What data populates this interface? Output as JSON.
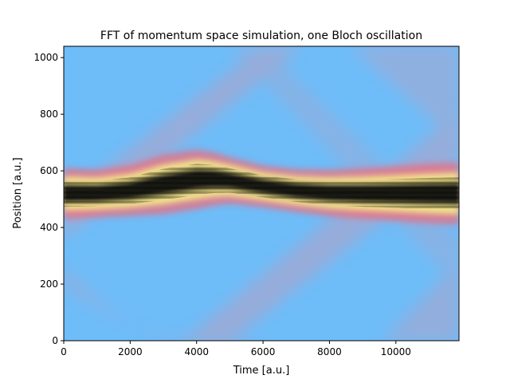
{
  "chart_data": {
    "type": "heatmap",
    "title": "FFT of momentum space simulation, one Bloch oscillation",
    "xlabel": "Time [a.u.]",
    "ylabel": "Position [a.u.]",
    "xlim": [
      0,
      11900
    ],
    "ylim": [
      0,
      1040
    ],
    "xticks": [
      0,
      2000,
      4000,
      6000,
      8000,
      10000
    ],
    "yticks": [
      0,
      200,
      400,
      600,
      800,
      1000
    ],
    "grid": false,
    "legend": "none",
    "colors": {
      "background": "#6ebcf8",
      "band_edge": "#f06a7a",
      "band_mid": "#f8f08a",
      "band_core": "#101008",
      "faint_pink": "#c89ab6"
    },
    "band_center": {
      "x": [
        0,
        1000,
        2000,
        3000,
        4000,
        4500,
        5000,
        6000,
        7000,
        8000,
        9000,
        10000,
        11000,
        11900
      ],
      "y": [
        520,
        520,
        530,
        552,
        570,
        571,
        566,
        545,
        530,
        522,
        520,
        520,
        520,
        520
      ]
    },
    "band_halfwidth": {
      "x": [
        0,
        1000,
        2000,
        3000,
        4000,
        4500,
        5000,
        6000,
        7000,
        8000,
        9000,
        10000,
        11000,
        11900
      ],
      "y": [
        85,
        80,
        85,
        100,
        100,
        90,
        78,
        70,
        72,
        78,
        85,
        92,
        100,
        105
      ]
    }
  }
}
